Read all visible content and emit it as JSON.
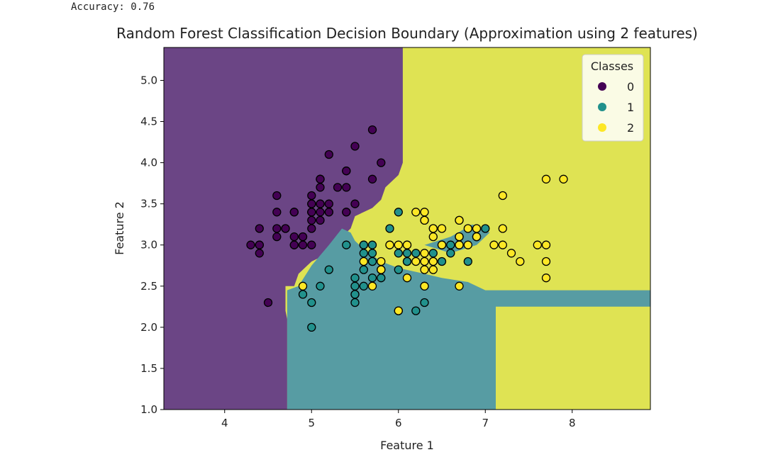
{
  "output": {
    "accuracy_line": "Accuracy: 0.76"
  },
  "chart_data": {
    "type": "scatter",
    "title": "Random Forest Classification Decision Boundary (Approximation using 2 features)",
    "xlabel": "Feature 1",
    "ylabel": "Feature 2",
    "xlim": [
      3.3,
      8.9
    ],
    "ylim": [
      1.0,
      5.4
    ],
    "xticks": [
      4,
      5,
      6,
      7,
      8
    ],
    "yticks": [
      1.0,
      1.5,
      2.0,
      2.5,
      3.0,
      3.5,
      4.0,
      4.5,
      5.0
    ],
    "ytick_labels": [
      "1.0",
      "1.5",
      "2.0",
      "2.5",
      "3.0",
      "3.5",
      "4.0",
      "4.5",
      "5.0"
    ],
    "grid": false,
    "legend": {
      "title": "Classes",
      "placement": "top-right",
      "entries": [
        "0",
        "1",
        "2"
      ]
    },
    "colors": {
      "class0": "#440154",
      "class1": "#21918c",
      "class2": "#fde725"
    },
    "region_colors": {
      "class0": "#6b4585",
      "class1": "#579ca3",
      "class2": "#dfe353"
    },
    "decision_regions": [
      {
        "class": 0,
        "polygon": [
          [
            3.3,
            1.0
          ],
          [
            4.72,
            1.0
          ],
          [
            4.72,
            2.1
          ],
          [
            4.7,
            2.2
          ],
          [
            4.7,
            2.5
          ],
          [
            4.8,
            2.5
          ],
          [
            4.85,
            2.65
          ],
          [
            5.0,
            2.8
          ],
          [
            5.2,
            2.9
          ],
          [
            5.35,
            3.1
          ],
          [
            5.45,
            3.2
          ],
          [
            5.5,
            3.35
          ],
          [
            5.7,
            3.45
          ],
          [
            5.8,
            3.55
          ],
          [
            5.85,
            3.7
          ],
          [
            6.0,
            3.85
          ],
          [
            6.05,
            4.0
          ],
          [
            6.05,
            5.4
          ],
          [
            3.3,
            5.4
          ]
        ]
      },
      {
        "class": 1,
        "polygon": [
          [
            4.72,
            1.0
          ],
          [
            7.12,
            1.0
          ],
          [
            7.12,
            2.25
          ],
          [
            8.9,
            2.25
          ],
          [
            8.9,
            2.45
          ],
          [
            7.0,
            2.45
          ],
          [
            6.8,
            2.55
          ],
          [
            6.5,
            2.6
          ],
          [
            6.3,
            2.65
          ],
          [
            6.0,
            2.72
          ],
          [
            5.8,
            2.8
          ],
          [
            5.6,
            2.95
          ],
          [
            5.5,
            3.05
          ],
          [
            5.45,
            3.15
          ],
          [
            5.35,
            3.2
          ],
          [
            5.2,
            3.0
          ],
          [
            5.0,
            2.75
          ],
          [
            4.85,
            2.5
          ],
          [
            4.72,
            2.45
          ]
        ]
      },
      {
        "class": 1,
        "polygon": [
          [
            6.3,
            3.0
          ],
          [
            6.6,
            2.9
          ],
          [
            6.9,
            3.0
          ],
          [
            7.05,
            3.15
          ],
          [
            6.85,
            3.25
          ],
          [
            6.6,
            3.1
          ]
        ]
      }
    ],
    "series": [
      {
        "name": "0",
        "points": [
          [
            5.1,
            3.5
          ],
          [
            4.9,
            3.0
          ],
          [
            4.7,
            3.2
          ],
          [
            4.6,
            3.1
          ],
          [
            5.0,
            3.6
          ],
          [
            5.4,
            3.9
          ],
          [
            4.6,
            3.4
          ],
          [
            5.0,
            3.4
          ],
          [
            4.4,
            2.9
          ],
          [
            4.9,
            3.1
          ],
          [
            5.4,
            3.7
          ],
          [
            4.8,
            3.4
          ],
          [
            4.8,
            3.0
          ],
          [
            4.3,
            3.0
          ],
          [
            5.8,
            4.0
          ],
          [
            5.7,
            4.4
          ],
          [
            5.4,
            3.9
          ],
          [
            5.1,
            3.5
          ],
          [
            5.7,
            3.8
          ],
          [
            5.1,
            3.8
          ],
          [
            5.4,
            3.4
          ],
          [
            5.1,
            3.7
          ],
          [
            4.6,
            3.6
          ],
          [
            5.1,
            3.3
          ],
          [
            4.8,
            3.4
          ],
          [
            5.0,
            3.0
          ],
          [
            5.0,
            3.4
          ],
          [
            5.2,
            3.5
          ],
          [
            5.2,
            3.4
          ],
          [
            4.7,
            3.2
          ],
          [
            4.8,
            3.1
          ],
          [
            5.4,
            3.4
          ],
          [
            5.2,
            4.1
          ],
          [
            5.5,
            4.2
          ],
          [
            4.9,
            3.1
          ],
          [
            5.0,
            3.2
          ],
          [
            5.5,
            3.5
          ],
          [
            4.4,
            3.0
          ],
          [
            5.1,
            3.4
          ],
          [
            5.0,
            3.5
          ],
          [
            4.5,
            2.3
          ],
          [
            4.4,
            3.2
          ],
          [
            5.0,
            3.5
          ],
          [
            5.1,
            3.8
          ],
          [
            4.8,
            3.0
          ],
          [
            5.1,
            3.8
          ],
          [
            4.6,
            3.2
          ],
          [
            5.3,
            3.7
          ],
          [
            5.0,
            3.3
          ],
          [
            5.0,
            3.4
          ],
          [
            4.4,
            3.0
          ],
          [
            5.2,
            3.4
          ]
        ]
      },
      {
        "name": "1",
        "points": [
          [
            7.0,
            3.2
          ],
          [
            6.4,
            3.2
          ],
          [
            6.9,
            3.1
          ],
          [
            5.5,
            2.3
          ],
          [
            6.5,
            2.8
          ],
          [
            5.7,
            2.8
          ],
          [
            6.3,
            3.3
          ],
          [
            4.9,
            2.4
          ],
          [
            6.6,
            2.9
          ],
          [
            5.2,
            2.7
          ],
          [
            5.0,
            2.0
          ],
          [
            5.9,
            3.0
          ],
          [
            6.0,
            2.2
          ],
          [
            6.1,
            2.9
          ],
          [
            5.6,
            2.9
          ],
          [
            6.7,
            3.1
          ],
          [
            5.6,
            3.0
          ],
          [
            5.8,
            2.7
          ],
          [
            6.2,
            2.2
          ],
          [
            5.6,
            2.5
          ],
          [
            5.9,
            3.2
          ],
          [
            6.1,
            2.8
          ],
          [
            6.3,
            2.5
          ],
          [
            6.1,
            2.8
          ],
          [
            6.4,
            2.9
          ],
          [
            6.6,
            3.0
          ],
          [
            6.8,
            2.8
          ],
          [
            6.7,
            3.0
          ],
          [
            6.0,
            2.9
          ],
          [
            5.7,
            2.6
          ],
          [
            5.5,
            2.4
          ],
          [
            5.5,
            2.4
          ],
          [
            5.8,
            2.7
          ],
          [
            6.0,
            2.7
          ],
          [
            5.4,
            3.0
          ],
          [
            6.0,
            3.4
          ],
          [
            6.7,
            3.1
          ],
          [
            6.3,
            2.3
          ],
          [
            5.6,
            3.0
          ],
          [
            5.5,
            2.5
          ],
          [
            5.5,
            2.6
          ],
          [
            6.1,
            3.0
          ],
          [
            5.8,
            2.6
          ],
          [
            5.0,
            2.3
          ],
          [
            5.6,
            2.7
          ],
          [
            5.7,
            3.0
          ],
          [
            5.7,
            2.9
          ],
          [
            6.2,
            2.9
          ],
          [
            5.1,
            2.5
          ],
          [
            5.7,
            2.8
          ]
        ]
      },
      {
        "name": "2",
        "points": [
          [
            6.3,
            3.3
          ],
          [
            5.8,
            2.7
          ],
          [
            7.1,
            3.0
          ],
          [
            6.3,
            2.9
          ],
          [
            6.5,
            3.0
          ],
          [
            7.6,
            3.0
          ],
          [
            4.9,
            2.5
          ],
          [
            7.3,
            2.9
          ],
          [
            6.7,
            2.5
          ],
          [
            7.2,
            3.6
          ],
          [
            6.5,
            3.2
          ],
          [
            6.4,
            2.7
          ],
          [
            6.8,
            3.0
          ],
          [
            5.7,
            2.5
          ],
          [
            5.8,
            2.8
          ],
          [
            6.4,
            3.2
          ],
          [
            6.5,
            3.0
          ],
          [
            7.7,
            3.8
          ],
          [
            7.7,
            2.6
          ],
          [
            6.0,
            2.2
          ],
          [
            6.9,
            3.2
          ],
          [
            5.6,
            2.8
          ],
          [
            7.7,
            2.8
          ],
          [
            6.3,
            2.7
          ],
          [
            6.7,
            3.3
          ],
          [
            7.2,
            3.2
          ],
          [
            6.2,
            2.8
          ],
          [
            6.1,
            3.0
          ],
          [
            6.4,
            2.8
          ],
          [
            7.2,
            3.0
          ],
          [
            7.4,
            2.8
          ],
          [
            7.9,
            3.8
          ],
          [
            6.4,
            2.8
          ],
          [
            6.3,
            2.8
          ],
          [
            6.1,
            2.6
          ],
          [
            7.7,
            3.0
          ],
          [
            6.3,
            3.4
          ],
          [
            6.4,
            3.1
          ],
          [
            6.0,
            3.0
          ],
          [
            6.9,
            3.1
          ],
          [
            6.7,
            3.1
          ],
          [
            6.9,
            3.1
          ],
          [
            5.8,
            2.7
          ],
          [
            6.8,
            3.2
          ],
          [
            6.7,
            3.3
          ],
          [
            6.7,
            3.0
          ],
          [
            6.3,
            2.5
          ],
          [
            6.5,
            3.0
          ],
          [
            6.2,
            3.4
          ],
          [
            5.9,
            3.0
          ]
        ]
      }
    ]
  }
}
